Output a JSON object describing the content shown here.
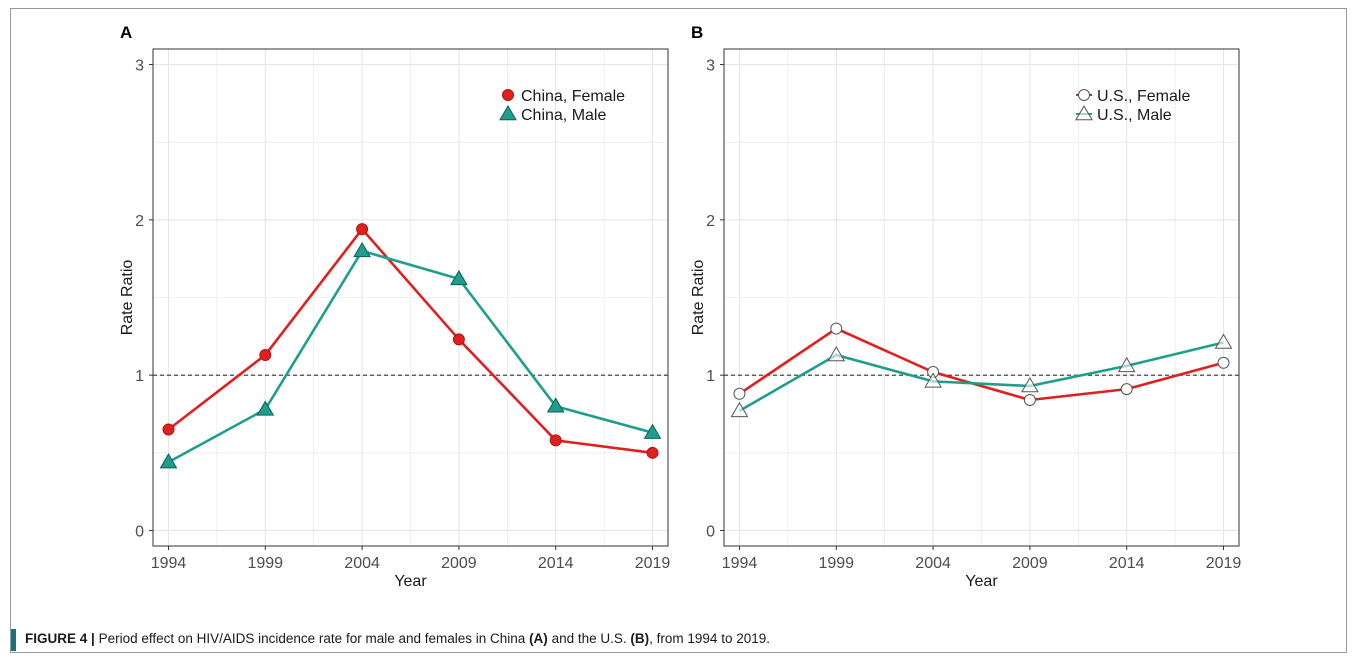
{
  "colors": {
    "female": "#e01f1f",
    "male": "#1f9e8e",
    "female_marker_stroke": "#b01515",
    "male_marker_stroke": "#0d5f55",
    "open_marker_fill": "#ffffff",
    "open_marker_stroke": "#555555",
    "grid": "#e6e6e6",
    "frame": "#333333",
    "reference_line": "#333333"
  },
  "caption": {
    "figure_label": "FIGURE 4 |",
    "text_part1": "Period effect on HIV/AIDS incidence rate for male and females in China",
    "panel_a_ref": "(A)",
    "text_part2": "and the U.S.",
    "panel_b_ref": "(B)",
    "text_part3": ", from 1994 to 2019."
  },
  "chart_data": [
    {
      "type": "line",
      "panel_label": "A",
      "xlabel": "Year",
      "ylabel": "Rate Ratio",
      "x": [
        1994,
        1999,
        2004,
        2009,
        2014,
        2019
      ],
      "xticks": [
        "1994",
        "1999",
        "2004",
        "2009",
        "2014",
        "2019"
      ],
      "yticks": [
        "0",
        "1",
        "2",
        "3"
      ],
      "ylim": [
        -0.1,
        3.1
      ],
      "xlim": [
        1993.2,
        2019.8
      ],
      "reference_line": 1,
      "grid": true,
      "legend_position": "top-right",
      "series": [
        {
          "name": "China, Female",
          "marker": "circle-filled",
          "color_key": "female",
          "values": [
            0.65,
            1.13,
            1.94,
            1.23,
            0.58,
            0.5
          ]
        },
        {
          "name": "China, Male",
          "marker": "triangle-filled",
          "color_key": "male",
          "values": [
            0.44,
            0.78,
            1.8,
            1.62,
            0.8,
            0.63
          ]
        }
      ]
    },
    {
      "type": "line",
      "panel_label": "B",
      "xlabel": "Year",
      "ylabel": "Rate Ratio",
      "x": [
        1994,
        1999,
        2004,
        2009,
        2014,
        2019
      ],
      "xticks": [
        "1994",
        "1999",
        "2004",
        "2009",
        "2014",
        "2019"
      ],
      "yticks": [
        "0",
        "1",
        "2",
        "3"
      ],
      "ylim": [
        -0.1,
        3.1
      ],
      "xlim": [
        1993.2,
        2019.8
      ],
      "reference_line": 1,
      "grid": true,
      "legend_position": "top-right",
      "series": [
        {
          "name": "U.S., Female",
          "marker": "circle-open",
          "color_key": "female",
          "values": [
            0.88,
            1.3,
            1.02,
            0.84,
            0.91,
            1.08
          ]
        },
        {
          "name": "U.S., Male",
          "marker": "triangle-open",
          "color_key": "male",
          "values": [
            0.77,
            1.13,
            0.96,
            0.93,
            1.06,
            1.21
          ]
        }
      ]
    }
  ]
}
